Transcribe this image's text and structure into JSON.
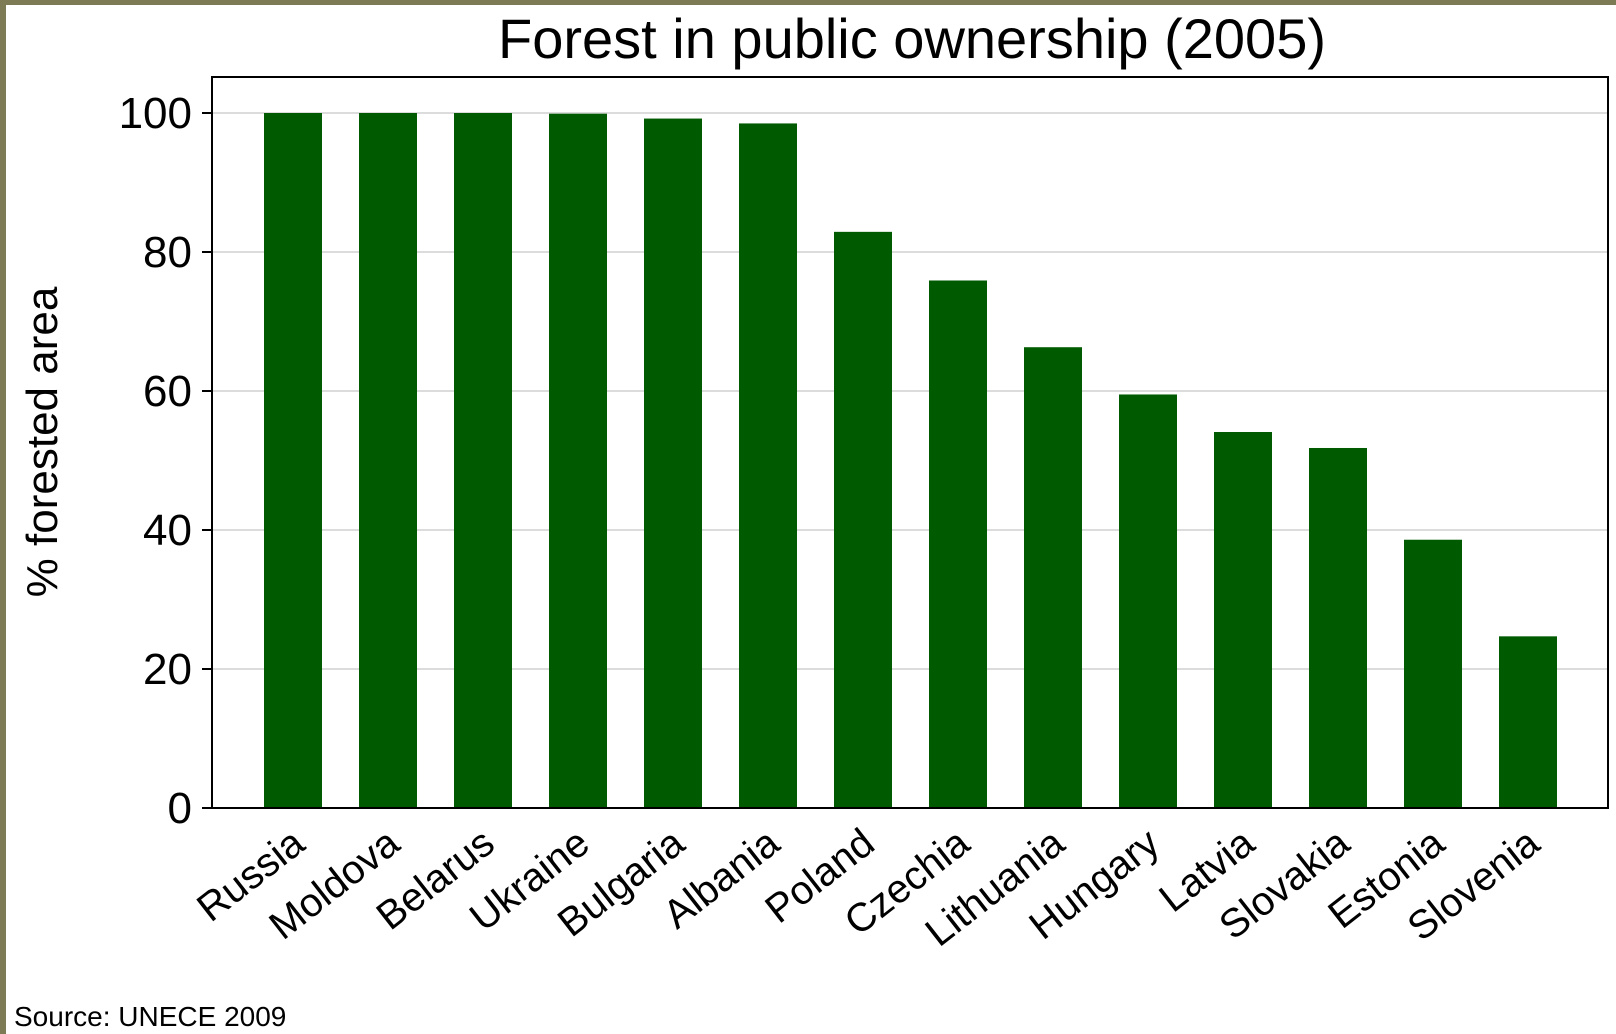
{
  "chart_data": {
    "type": "bar",
    "title": "Forest in public ownership (2005)",
    "xlabel": "",
    "ylabel": "% forested area",
    "categories": [
      "Russia",
      "Moldova",
      "Belarus",
      "Ukraine",
      "Bulgaria",
      "Albania",
      "Poland",
      "Czechia",
      "Lithuania",
      "Hungary",
      "Latvia",
      "Slovakia",
      "Estonia",
      "Slovenia"
    ],
    "values": [
      100,
      100,
      100,
      99.9,
      99.2,
      98.5,
      82.9,
      75.9,
      66.3,
      59.5,
      54.1,
      51.8,
      38.6,
      24.7
    ],
    "ylim": [
      0,
      100
    ],
    "yticks": [
      "0",
      "20",
      "40",
      "60",
      "80",
      "100"
    ],
    "grid": true,
    "legend": "none",
    "bar_color": "#005a00",
    "grid_color": "#dcdcdc",
    "source": "Source: UNECE 2009"
  }
}
